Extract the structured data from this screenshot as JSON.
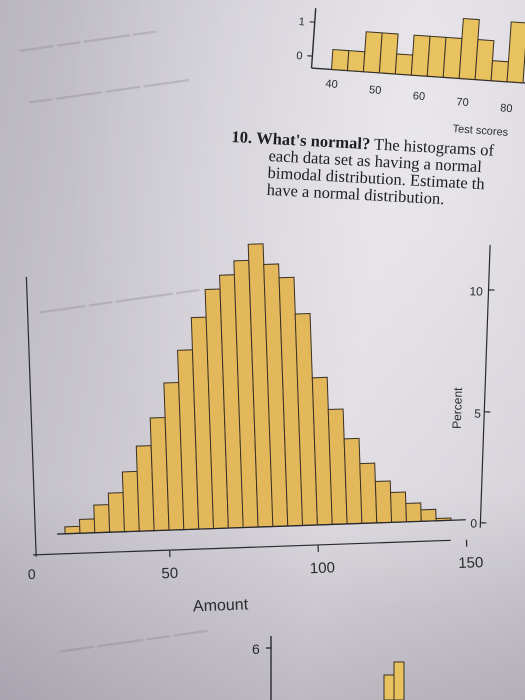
{
  "top_chart": {
    "x_ticks": [
      "40",
      "50",
      "60",
      "70",
      "80"
    ],
    "y_ticks": [
      "0",
      "1"
    ],
    "xlabel": "Test scores",
    "bar_color": "#e7c25e"
  },
  "question": {
    "number": "10.",
    "title": "What's normal?",
    "lines": [
      "The histograms of",
      "each data set as having a normal",
      "bimodal distribution. Estimate th",
      "have a normal distribution."
    ]
  },
  "main_chart": {
    "x_ticks": [
      "50",
      "100",
      "150"
    ],
    "xlabel": "Amount",
    "bar_color": "#e3b85a",
    "edge_color": "#3a3026"
  },
  "right_chart": {
    "ylabel": "Percent",
    "y_ticks": [
      "10",
      "5",
      "0"
    ]
  },
  "bottom_chart": {
    "y_ticks": [
      "6"
    ],
    "bar_color": "#e7c25e"
  },
  "left_edge_ticks": [
    "0"
  ],
  "chart_data": {
    "type": "bar",
    "title": "",
    "xlabel": "Amount",
    "ylabel": "",
    "x_ticks": [
      50,
      100,
      150
    ],
    "bin_width": 5,
    "bin_starts": [
      15,
      20,
      25,
      30,
      35,
      40,
      45,
      50,
      55,
      60,
      65,
      70,
      75,
      80,
      85,
      90,
      95,
      100,
      105,
      110,
      115,
      120,
      125,
      130,
      135,
      140
    ],
    "values": [
      0.3,
      0.6,
      1.2,
      1.7,
      2.6,
      3.7,
      4.9,
      6.4,
      7.8,
      9.2,
      10.4,
      11.0,
      11.6,
      12.3,
      11.4,
      10.8,
      9.2,
      6.4,
      5.0,
      3.7,
      2.6,
      1.8,
      1.3,
      0.8,
      0.5,
      0.1
    ]
  }
}
